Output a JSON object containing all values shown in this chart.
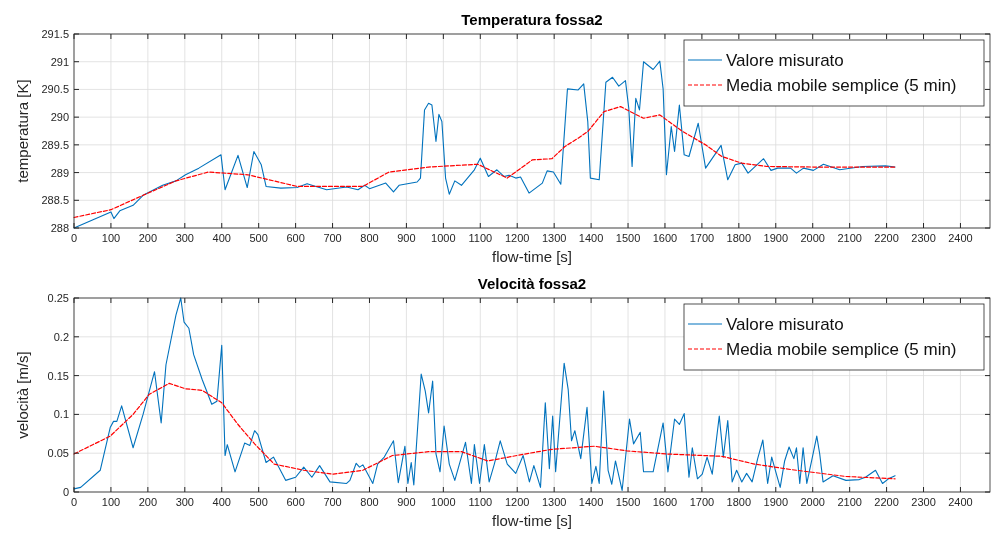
{
  "chart_data": [
    {
      "type": "line",
      "title": "Temperatura fossa2",
      "xlabel": "flow-time [s]",
      "ylabel": "temperatura [K]",
      "xlim": [
        0,
        2480
      ],
      "xticks": [
        0,
        100,
        200,
        300,
        400,
        500,
        600,
        700,
        800,
        900,
        1000,
        1100,
        1200,
        1300,
        1400,
        1500,
        1600,
        1700,
        1800,
        1900,
        2000,
        2100,
        2200,
        2300,
        2400
      ],
      "ylim": [
        288,
        291.5
      ],
      "yticks": [
        288,
        288.5,
        289,
        289.5,
        290,
        290.5,
        291,
        291.5
      ],
      "grid": true,
      "legend": "top right",
      "series": [
        {
          "name": "Valore misurato",
          "color": "#0072bd",
          "line_style": "solid",
          "x": [
            0,
            100,
            108,
            124,
            160,
            187,
            240,
            276,
            302,
            338,
            398,
            409,
            444,
            469,
            487,
            507,
            520,
            560,
            604,
            631,
            684,
            738,
            769,
            787,
            800,
            844,
            865,
            880,
            929,
            938,
            949,
            960,
            969,
            980,
            988,
            996,
            1006,
            1016,
            1031,
            1049,
            1084,
            1100,
            1122,
            1145,
            1164,
            1178,
            1196,
            1209,
            1232,
            1268,
            1281,
            1298,
            1318,
            1336,
            1365,
            1380,
            1391,
            1398,
            1422,
            1440,
            1458,
            1475,
            1493,
            1502,
            1511,
            1521,
            1531,
            1542,
            1568,
            1586,
            1595,
            1604,
            1617,
            1626,
            1639,
            1652,
            1665,
            1690,
            1710,
            1752,
            1770,
            1790,
            1808,
            1825,
            1867,
            1887,
            1905,
            1940,
            1956,
            1975,
            2002,
            2029,
            2073,
            2135,
            2197,
            2223
          ],
          "values": [
            288.0,
            288.29,
            288.17,
            288.31,
            288.41,
            288.59,
            288.77,
            288.85,
            288.96,
            289.08,
            289.32,
            288.69,
            289.31,
            288.73,
            289.38,
            289.14,
            288.75,
            288.72,
            288.73,
            288.8,
            288.69,
            288.74,
            288.69,
            288.77,
            288.71,
            288.81,
            288.65,
            288.77,
            288.83,
            288.9,
            290.13,
            290.25,
            290.22,
            289.56,
            290.05,
            289.92,
            288.9,
            288.61,
            288.85,
            288.77,
            289.05,
            289.26,
            288.93,
            289.05,
            288.93,
            288.95,
            288.9,
            288.92,
            288.63,
            288.81,
            289.03,
            289.01,
            288.79,
            290.51,
            290.49,
            290.6,
            289.92,
            288.9,
            288.87,
            290.63,
            290.72,
            290.56,
            290.66,
            290.16,
            289.11,
            290.34,
            290.13,
            291.0,
            290.86,
            291.01,
            290.51,
            288.96,
            289.83,
            289.38,
            290.22,
            289.32,
            289.29,
            289.89,
            289.08,
            289.49,
            288.87,
            289.14,
            289.17,
            288.99,
            289.25,
            289.04,
            289.08,
            289.08,
            288.99,
            289.08,
            289.04,
            289.15,
            289.05,
            289.11,
            289.12,
            289.1
          ]
        },
        {
          "name": "Media mobile semplice (5 min)",
          "color": "#ff0000",
          "line_style": "dashed",
          "x": [
            0,
            100,
            187,
            276,
            364,
            471,
            604,
            782,
            853,
            960,
            1093,
            1173,
            1241,
            1294,
            1329,
            1365,
            1391,
            1435,
            1480,
            1515,
            1542,
            1586,
            1648,
            1710,
            1754,
            1808,
            1876,
            2002,
            2223
          ],
          "values": [
            288.19,
            288.33,
            288.59,
            288.85,
            289.01,
            288.96,
            288.75,
            288.75,
            289.01,
            289.1,
            289.15,
            288.9,
            289.23,
            289.25,
            289.47,
            289.62,
            289.74,
            290.1,
            290.19,
            290.07,
            289.98,
            290.04,
            289.74,
            289.5,
            289.29,
            289.17,
            289.11,
            289.1,
            289.1
          ]
        }
      ]
    },
    {
      "type": "line",
      "title": "Velocità fossa2",
      "xlabel": "flow-time [s]",
      "ylabel": "velocità [m/s]",
      "xlim": [
        0,
        2480
      ],
      "xticks": [
        0,
        100,
        200,
        300,
        400,
        500,
        600,
        700,
        800,
        900,
        1000,
        1100,
        1200,
        1300,
        1400,
        1500,
        1600,
        1700,
        1800,
        1900,
        2000,
        2100,
        2200,
        2300,
        2400
      ],
      "ylim": [
        0,
        0.25
      ],
      "yticks": [
        0,
        0.05,
        0.1,
        0.15,
        0.2,
        0.25
      ],
      "grid": true,
      "legend": "top right",
      "series": [
        {
          "name": "Valore misurato",
          "color": "#0072bd",
          "line_style": "solid",
          "x": [
            0,
            18,
            71,
            98,
            107,
            116,
            129,
            160,
            187,
            218,
            236,
            249,
            265,
            276,
            289,
            298,
            311,
            324,
            347,
            373,
            387,
            400,
            409,
            415,
            436,
            462,
            476,
            489,
            498,
            520,
            540,
            573,
            600,
            622,
            644,
            665,
            693,
            738,
            747,
            764,
            773,
            782,
            809,
            822,
            840,
            865,
            878,
            896,
            904,
            913,
            920,
            940,
            951,
            960,
            971,
            980,
            991,
            1002,
            1016,
            1031,
            1060,
            1076,
            1084,
            1098,
            1111,
            1124,
            1138,
            1154,
            1173,
            1196,
            1216,
            1233,
            1245,
            1263,
            1276,
            1287,
            1296,
            1304,
            1327,
            1338,
            1347,
            1356,
            1372,
            1389,
            1402,
            1413,
            1422,
            1434,
            1446,
            1456,
            1466,
            1484,
            1504,
            1515,
            1533,
            1542,
            1568,
            1595,
            1608,
            1626,
            1639,
            1652,
            1665,
            1674,
            1688,
            1701,
            1714,
            1728,
            1747,
            1758,
            1770,
            1782,
            1794,
            1808,
            1821,
            1836,
            1851,
            1865,
            1878,
            1889,
            1900,
            1912,
            1924,
            1936,
            1949,
            1956,
            1965,
            1974,
            1984,
            1997,
            2011,
            2019,
            2028,
            2055,
            2090,
            2126,
            2143,
            2170,
            2189,
            2205,
            2223
          ],
          "values": [
            0.004,
            0.006,
            0.028,
            0.083,
            0.091,
            0.091,
            0.111,
            0.057,
            0.1,
            0.155,
            0.089,
            0.164,
            0.202,
            0.228,
            0.25,
            0.219,
            0.211,
            0.177,
            0.145,
            0.113,
            0.117,
            0.189,
            0.047,
            0.061,
            0.026,
            0.063,
            0.06,
            0.079,
            0.074,
            0.038,
            0.045,
            0.015,
            0.019,
            0.032,
            0.019,
            0.034,
            0.013,
            0.011,
            0.015,
            0.037,
            0.032,
            0.035,
            0.011,
            0.036,
            0.045,
            0.066,
            0.012,
            0.059,
            0.011,
            0.038,
            0.009,
            0.152,
            0.13,
            0.102,
            0.143,
            0.049,
            0.026,
            0.085,
            0.036,
            0.015,
            0.064,
            0.011,
            0.061,
            0.011,
            0.061,
            0.013,
            0.036,
            0.066,
            0.036,
            0.024,
            0.047,
            0.013,
            0.034,
            0.006,
            0.115,
            0.03,
            0.098,
            0.026,
            0.166,
            0.132,
            0.066,
            0.079,
            0.043,
            0.109,
            0.011,
            0.033,
            0.011,
            0.13,
            0.028,
            0.01,
            0.04,
            0.002,
            0.094,
            0.062,
            0.077,
            0.026,
            0.026,
            0.089,
            0.026,
            0.094,
            0.087,
            0.101,
            0.019,
            0.057,
            0.017,
            0.023,
            0.045,
            0.023,
            0.098,
            0.045,
            0.092,
            0.013,
            0.028,
            0.013,
            0.024,
            0.013,
            0.043,
            0.067,
            0.011,
            0.045,
            0.026,
            0.006,
            0.04,
            0.058,
            0.043,
            0.057,
            0.011,
            0.057,
            0.011,
            0.04,
            0.072,
            0.049,
            0.013,
            0.021,
            0.015,
            0.016,
            0.019,
            0.028,
            0.011,
            0.017,
            0.021
          ]
        },
        {
          "name": "Media mobile semplice (5 min)",
          "color": "#ff0000",
          "line_style": "dashed",
          "x": [
            0,
            98,
            160,
            204,
            258,
            302,
            347,
            400,
            444,
            489,
            542,
            622,
            702,
            782,
            862,
            960,
            1049,
            1120,
            1233,
            1294,
            1409,
            1497,
            1604,
            1754,
            1842,
            1940,
            2090,
            2223
          ],
          "values": [
            0.049,
            0.072,
            0.1,
            0.126,
            0.14,
            0.133,
            0.131,
            0.115,
            0.087,
            0.062,
            0.036,
            0.028,
            0.023,
            0.028,
            0.047,
            0.052,
            0.052,
            0.04,
            0.05,
            0.055,
            0.059,
            0.053,
            0.049,
            0.046,
            0.036,
            0.029,
            0.02,
            0.017
          ]
        }
      ]
    }
  ]
}
